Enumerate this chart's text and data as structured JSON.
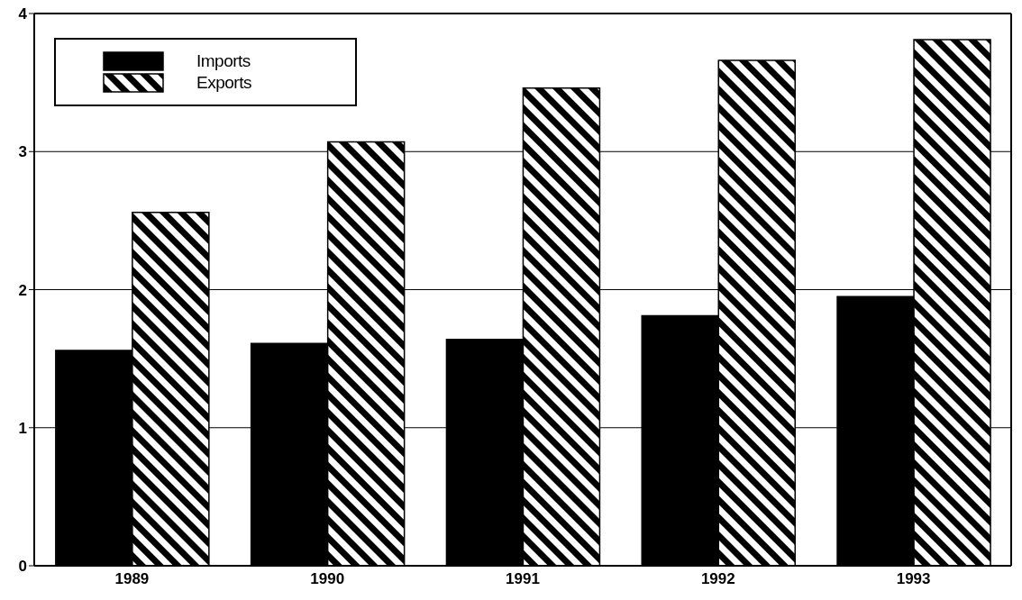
{
  "chart_data": {
    "type": "bar",
    "categories": [
      "1989",
      "1990",
      "1991",
      "1992",
      "1993"
    ],
    "series": [
      {
        "name": "Imports",
        "color": "#000000",
        "values": [
          1.56,
          1.61,
          1.64,
          1.81,
          1.95
        ]
      },
      {
        "name": "Exports",
        "color": "#000000",
        "values": [
          2.56,
          3.07,
          3.46,
          3.66,
          3.81
        ]
      }
    ],
    "ylim": [
      0,
      4
    ],
    "yticks": [
      0,
      1,
      2,
      3,
      4
    ],
    "grid": "y",
    "legend": "top left"
  }
}
